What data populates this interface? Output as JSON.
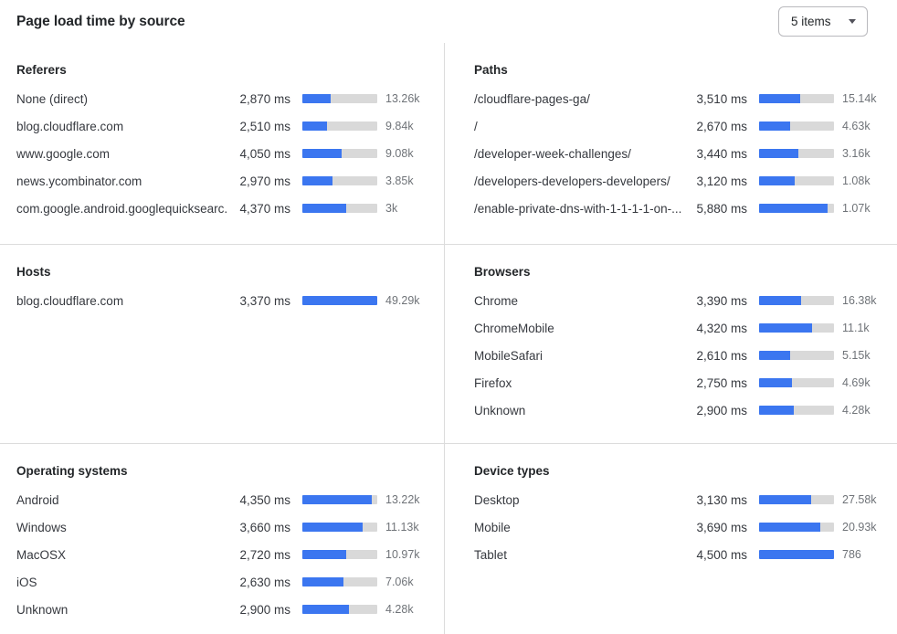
{
  "header": {
    "title": "Page load time by source",
    "items_selector": {
      "label": "5 items",
      "icon": "caret-down-icon"
    }
  },
  "colors": {
    "bar_fill": "#3b76f0",
    "bar_track": "#d9d9d9",
    "divider": "#dcdcdc",
    "title": "#232629",
    "label": "#36393f",
    "count": "#6f7378"
  },
  "panels": [
    {
      "id": "referers",
      "title": "Referers",
      "rows": [
        {
          "label": "None (direct)",
          "value": "2,870 ms",
          "bar_pct": 38,
          "count": "13.26k"
        },
        {
          "label": "blog.cloudflare.com",
          "value": "2,510 ms",
          "bar_pct": 33,
          "count": "9.84k"
        },
        {
          "label": "www.google.com",
          "value": "4,050 ms",
          "bar_pct": 53,
          "count": "9.08k"
        },
        {
          "label": "news.ycombinator.com",
          "value": "2,970 ms",
          "bar_pct": 40,
          "count": "3.85k"
        },
        {
          "label": "com.google.android.googlequicksearc...",
          "value": "4,370 ms",
          "bar_pct": 58,
          "count": "3k"
        }
      ]
    },
    {
      "id": "paths",
      "title": "Paths",
      "rows": [
        {
          "label": "/cloudflare-pages-ga/",
          "value": "3,510 ms",
          "bar_pct": 55,
          "count": "15.14k"
        },
        {
          "label": "/",
          "value": "2,670 ms",
          "bar_pct": 42,
          "count": "4.63k"
        },
        {
          "label": "/developer-week-challenges/",
          "value": "3,440 ms",
          "bar_pct": 53,
          "count": "3.16k"
        },
        {
          "label": "/developers-developers-developers/",
          "value": "3,120 ms",
          "bar_pct": 48,
          "count": "1.08k"
        },
        {
          "label": "/enable-private-dns-with-1-1-1-1-on-...",
          "value": "5,880 ms",
          "bar_pct": 92,
          "count": "1.07k"
        }
      ]
    },
    {
      "id": "hosts",
      "title": "Hosts",
      "rows": [
        {
          "label": "blog.cloudflare.com",
          "value": "3,370 ms",
          "bar_pct": 100,
          "count": "49.29k"
        }
      ]
    },
    {
      "id": "browsers",
      "title": "Browsers",
      "rows": [
        {
          "label": "Chrome",
          "value": "3,390 ms",
          "bar_pct": 56,
          "count": "16.38k"
        },
        {
          "label": "ChromeMobile",
          "value": "4,320 ms",
          "bar_pct": 71,
          "count": "11.1k"
        },
        {
          "label": "MobileSafari",
          "value": "2,610 ms",
          "bar_pct": 42,
          "count": "5.15k"
        },
        {
          "label": "Firefox",
          "value": "2,750 ms",
          "bar_pct": 44,
          "count": "4.69k"
        },
        {
          "label": "Unknown",
          "value": "2,900 ms",
          "bar_pct": 46,
          "count": "4.28k"
        }
      ]
    },
    {
      "id": "operating-systems",
      "title": "Operating systems",
      "rows": [
        {
          "label": "Android",
          "value": "4,350 ms",
          "bar_pct": 93,
          "count": "13.22k"
        },
        {
          "label": "Windows",
          "value": "3,660 ms",
          "bar_pct": 80,
          "count": "11.13k"
        },
        {
          "label": "MacOSX",
          "value": "2,720 ms",
          "bar_pct": 58,
          "count": "10.97k"
        },
        {
          "label": "iOS",
          "value": "2,630 ms",
          "bar_pct": 55,
          "count": "7.06k"
        },
        {
          "label": "Unknown",
          "value": "2,900 ms",
          "bar_pct": 62,
          "count": "4.28k"
        }
      ]
    },
    {
      "id": "device-types",
      "title": "Device types",
      "rows": [
        {
          "label": "Desktop",
          "value": "3,130 ms",
          "bar_pct": 70,
          "count": "27.58k"
        },
        {
          "label": "Mobile",
          "value": "3,690 ms",
          "bar_pct": 82,
          "count": "20.93k"
        },
        {
          "label": "Tablet",
          "value": "4,500 ms",
          "bar_pct": 100,
          "count": "786"
        }
      ]
    }
  ]
}
